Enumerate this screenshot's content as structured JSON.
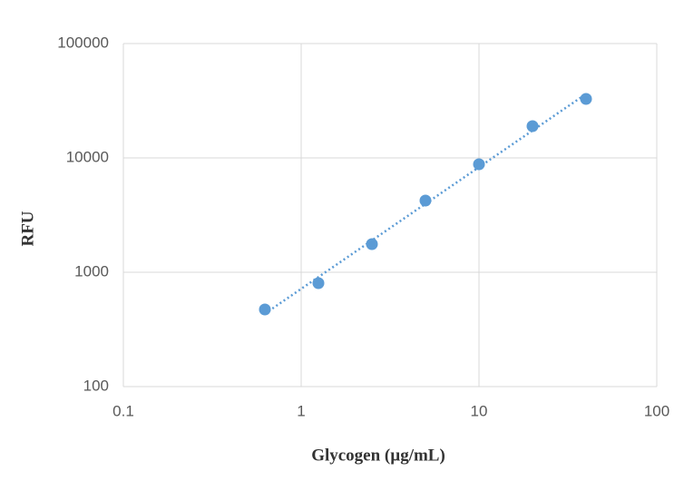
{
  "chart_data": {
    "type": "scatter",
    "x_label": "Glycogen (µg/mL)",
    "y_label": "RFU",
    "series": [
      {
        "color": "#5b9bd5",
        "x": [
          0.625,
          1.25,
          2.5,
          5,
          10,
          20,
          40
        ],
        "values": [
          473,
          803,
          1763,
          4236,
          8800,
          18950,
          32800
        ]
      }
    ],
    "trendline": "power",
    "xlim": [
      0.1,
      100
    ],
    "xticks": [
      0.1,
      1,
      10,
      100
    ],
    "x_log": true,
    "ylim": [
      100,
      100000
    ],
    "yticks": [
      100,
      1000,
      10000,
      100000
    ],
    "y_log": true,
    "grid": true
  }
}
